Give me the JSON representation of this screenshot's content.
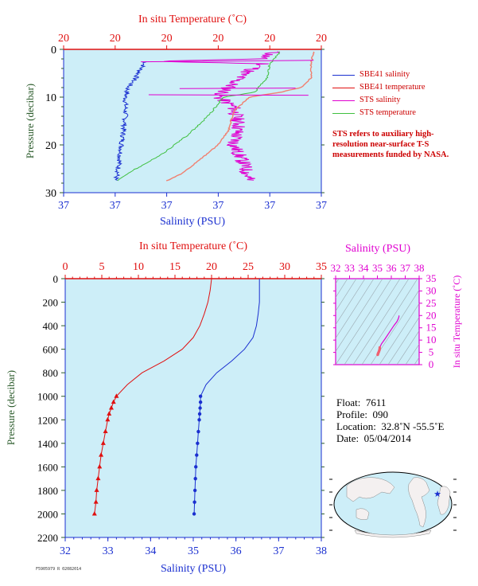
{
  "chart_data": [
    {
      "type": "line",
      "name": "top-profile",
      "top_axis_label": "In situ Temperature (˚C)",
      "top_ticks": [
        "20",
        "20",
        "20",
        "20",
        "20",
        "20"
      ],
      "bottom_axis_label": "Salinity (PSU)",
      "bottom_ticks": [
        "37",
        "37",
        "37",
        "37",
        "37",
        "37"
      ],
      "ylabel": "Pressure (decibar)",
      "y_ticks": [
        "0",
        "10",
        "20",
        "30"
      ],
      "ylim": [
        0,
        30
      ],
      "series": [
        {
          "name": "SBE41 salinity",
          "color": "#1a2fd0"
        },
        {
          "name": "SBE41 temperature",
          "color": "#e01010"
        },
        {
          "name": "STS salinity",
          "color": "#e000d0"
        },
        {
          "name": "STS temperature",
          "color": "#40c040"
        }
      ]
    },
    {
      "type": "line",
      "name": "main-profile",
      "top_axis_label": "In situ Temperature (˚C)",
      "top_ticks": [
        "0",
        "5",
        "10",
        "15",
        "20",
        "25",
        "30",
        "35"
      ],
      "xlim_temp": [
        0,
        35
      ],
      "bottom_axis_label": "Salinity (PSU)",
      "bottom_ticks": [
        "32",
        "33",
        "34",
        "35",
        "36",
        "37",
        "38"
      ],
      "xlim_sal": [
        32,
        38
      ],
      "ylabel": "Pressure (decibar)",
      "y_ticks": [
        "0",
        "200",
        "400",
        "600",
        "800",
        "1000",
        "1200",
        "1400",
        "1600",
        "1800",
        "2000",
        "2200"
      ],
      "ylim": [
        0,
        2200
      ],
      "temperature": {
        "pressure": [
          0,
          100,
          200,
          300,
          400,
          500,
          600,
          700,
          800,
          900,
          1000,
          1050,
          1100,
          1150,
          1200,
          1300,
          1400,
          1500,
          1600,
          1700,
          1800,
          1900,
          2000
        ],
        "values": [
          20.0,
          19.8,
          19.5,
          19.0,
          18.4,
          17.5,
          16.0,
          13.5,
          10.5,
          8.5,
          7.0,
          6.6,
          6.3,
          6.0,
          5.8,
          5.5,
          5.2,
          4.9,
          4.7,
          4.5,
          4.3,
          4.2,
          4.0
        ],
        "markers_from": 1000
      },
      "salinity": {
        "pressure": [
          0,
          100,
          200,
          300,
          400,
          500,
          600,
          700,
          800,
          900,
          1000,
          1050,
          1100,
          1150,
          1200,
          1300,
          1400,
          1500,
          1600,
          1700,
          1800,
          1900,
          2000
        ],
        "values": [
          36.55,
          36.55,
          36.55,
          36.52,
          36.48,
          36.4,
          36.2,
          35.9,
          35.55,
          35.3,
          35.17,
          35.17,
          35.16,
          35.15,
          35.14,
          35.12,
          35.1,
          35.08,
          35.06,
          35.05,
          35.04,
          35.03,
          35.02
        ],
        "markers_from": 1000
      }
    },
    {
      "type": "scatter",
      "name": "ts-diagram",
      "top_axis_label": "Salinity (PSU)",
      "top_ticks": [
        "32",
        "33",
        "34",
        "35",
        "36",
        "37",
        "38"
      ],
      "xlim": [
        32,
        38
      ],
      "right_axis_label": "In situ Temperature (˚C)",
      "right_ticks": [
        "0",
        "5",
        "10",
        "15",
        "20",
        "25",
        "30",
        "35"
      ],
      "ylim": [
        0,
        35
      ]
    }
  ],
  "info": {
    "float_label": "Float:",
    "float_value": "7611",
    "profile_label": "Profile:",
    "profile_value": "090",
    "location_label": "Location:",
    "location_value": "32.8˚N  -55.5˚E",
    "date_label": "Date:",
    "date_value": "05/04/2014"
  },
  "legend": {
    "items": [
      {
        "label": "SBE41 salinity",
        "color": "#1a2fd0"
      },
      {
        "label": "SBE41 temperature",
        "color": "#e01010"
      },
      {
        "label": "STS salinity",
        "color": "#e000d0"
      },
      {
        "label": "STS temperature",
        "color": "#40c040"
      }
    ]
  },
  "note": "STS refers to auxiliary high-resolution near-surface T-S measurements funded by NASA.",
  "footer": "F5905979 R 02082014"
}
